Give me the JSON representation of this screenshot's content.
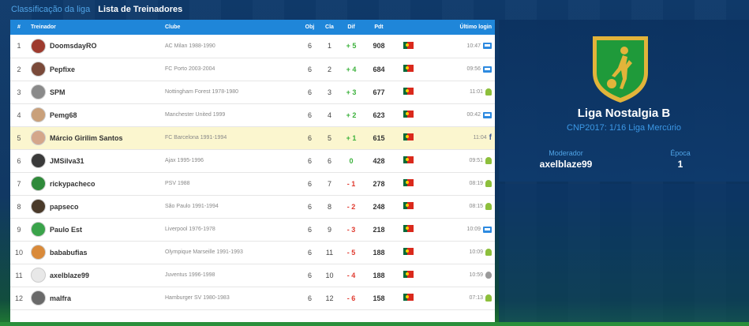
{
  "nav": {
    "tab1": "Classificação da liga",
    "tab2": "Lista de Treinadores"
  },
  "table": {
    "headers": {
      "rank": "#",
      "coach": "Treinador",
      "club": "Clube",
      "obj": "Obj",
      "cla": "Cla",
      "dif": "Dif",
      "pts": "Pdt",
      "login": "Último login"
    },
    "rows": [
      {
        "rank": "1",
        "coach": "DoomsdayRO",
        "club": "AC Milan 1988-1990",
        "obj": "6",
        "cla": "1",
        "dif": "+ 5",
        "pts": "908",
        "login": "10:47",
        "device": "monitor",
        "avatar": "#9e3b2e"
      },
      {
        "rank": "2",
        "coach": "Pepfixe",
        "club": "FC Porto 2003-2004",
        "obj": "6",
        "cla": "2",
        "dif": "+ 4",
        "pts": "684",
        "login": "09:56",
        "device": "monitor",
        "avatar": "#7a4a3a"
      },
      {
        "rank": "3",
        "coach": "SPM",
        "club": "Nottingham Forest 1978-1980",
        "obj": "6",
        "cla": "3",
        "dif": "+ 3",
        "pts": "677",
        "login": "11:01",
        "device": "android",
        "avatar": "#8a8a8a"
      },
      {
        "rank": "4",
        "coach": "Pemg68",
        "club": "Manchester United 1999",
        "obj": "6",
        "cla": "4",
        "dif": "+ 2",
        "pts": "623",
        "login": "00:42",
        "device": "monitor",
        "avatar": "#c9a07a"
      },
      {
        "rank": "5",
        "coach": "Márcio Girilim Santos",
        "club": "FC Barcelona 1991-1994",
        "obj": "6",
        "cla": "5",
        "dif": "+ 1",
        "pts": "615",
        "login": "11:04",
        "device": "facebook",
        "avatar": "#d4a68a"
      },
      {
        "rank": "6",
        "coach": "JMSilva31",
        "club": "Ajax 1995-1996",
        "obj": "6",
        "cla": "6",
        "dif": "0",
        "pts": "428",
        "login": "09:51",
        "device": "android",
        "avatar": "#3a3a3a"
      },
      {
        "rank": "7",
        "coach": "rickypacheco",
        "club": "PSV 1988",
        "obj": "6",
        "cla": "7",
        "dif": "- 1",
        "pts": "278",
        "login": "08:19",
        "device": "android",
        "avatar": "#2f8a3a"
      },
      {
        "rank": "8",
        "coach": "papseco",
        "club": "São Paulo 1991-1994",
        "obj": "6",
        "cla": "8",
        "dif": "- 2",
        "pts": "248",
        "login": "08:15",
        "device": "android",
        "avatar": "#4a3a2a"
      },
      {
        "rank": "9",
        "coach": "Paulo Est",
        "club": "Liverpool 1976-1978",
        "obj": "6",
        "cla": "9",
        "dif": "- 3",
        "pts": "218",
        "login": "10:09",
        "device": "monitor",
        "avatar": "#3aa34a"
      },
      {
        "rank": "10",
        "coach": "bababufias",
        "club": "Olympique Marseille 1991-1993",
        "obj": "6",
        "cla": "11",
        "dif": "- 5",
        "pts": "188",
        "login": "10:09",
        "device": "android",
        "avatar": "#d98a3a"
      },
      {
        "rank": "11",
        "coach": "axelblaze99",
        "club": "Juventus 1996-1998",
        "obj": "6",
        "cla": "10",
        "dif": "- 4",
        "pts": "188",
        "login": "10:59",
        "device": "apple",
        "avatar": "#e8e8e8"
      },
      {
        "rank": "12",
        "coach": "malfra",
        "club": "Hamburger SV 1980-1983",
        "obj": "6",
        "cla": "12",
        "dif": "- 6",
        "pts": "158",
        "login": "07:13",
        "device": "android",
        "avatar": "#6a6a6a"
      }
    ]
  },
  "league": {
    "name": "Liga Nostalgia B",
    "subtitle": "CNP2017: 1/16 Liga Mercúrio",
    "moderator_label": "Moderador",
    "moderator_value": "axelblaze99",
    "season_label": "Época",
    "season_value": "1"
  },
  "colors": {
    "header_blue": "#1f86d9",
    "positive": "#3bb13b",
    "negative": "#e03a2f",
    "highlight_row": "#fbf6cf",
    "crest_green": "#1f9a3a",
    "crest_gold": "#e2b43a"
  }
}
